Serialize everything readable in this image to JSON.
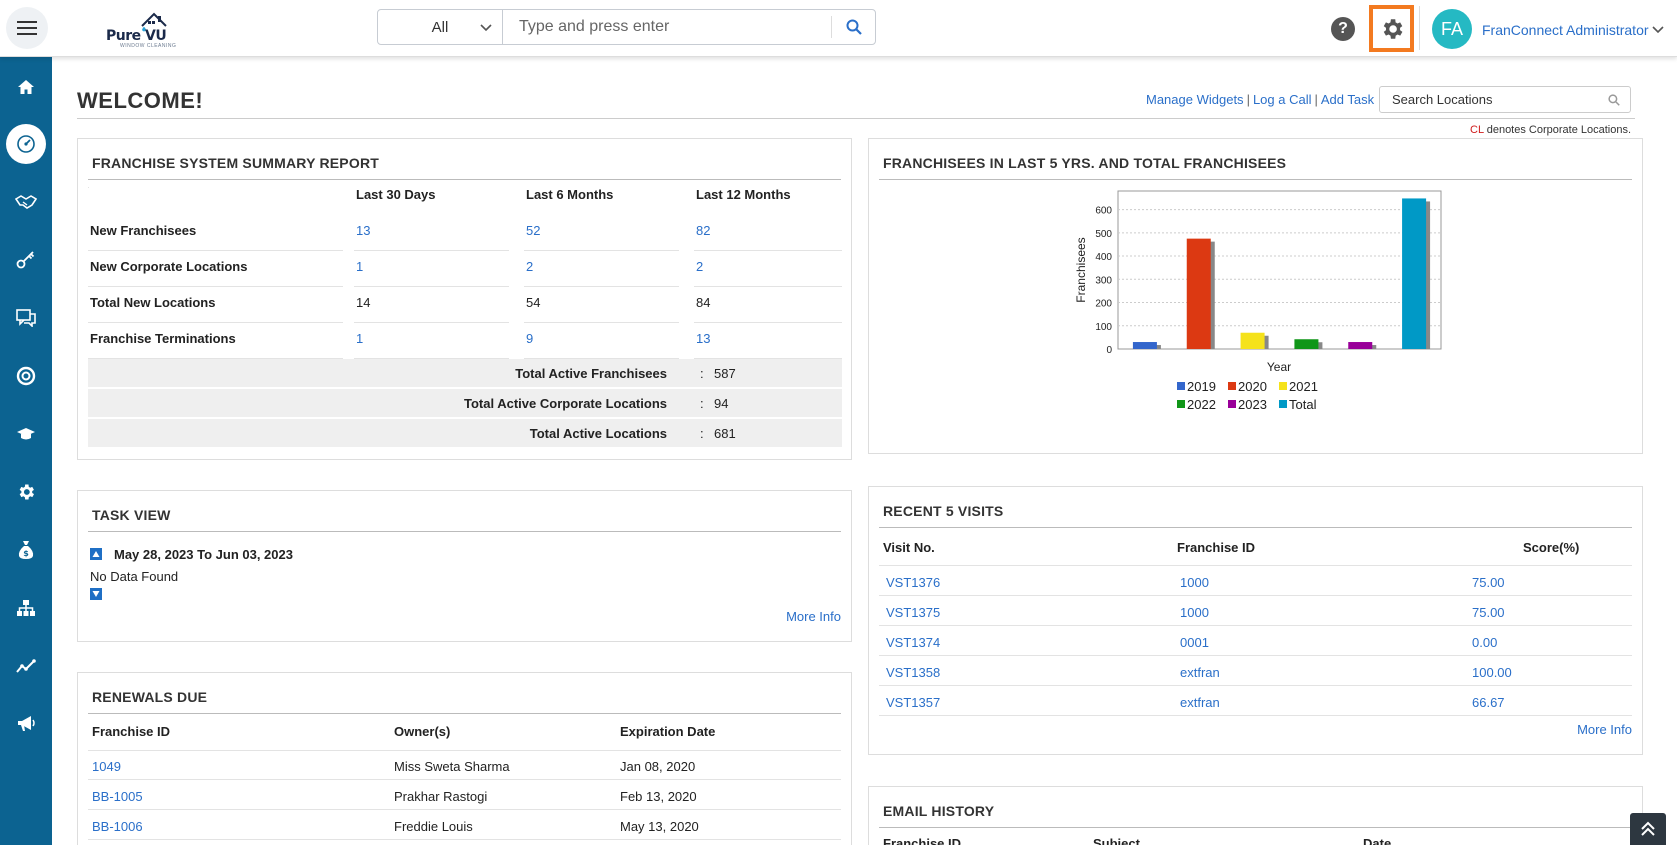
{
  "header": {
    "logo_text": "Pure VU",
    "logo_tagline": "WINDOW CLEANING",
    "search_category": "All",
    "search_placeholder": "Type and press enter",
    "user_initials": "FA",
    "user_name": "FranConnect Administrator"
  },
  "sidebar": {
    "items": [
      {
        "icon": "home-icon"
      },
      {
        "icon": "dashboard-icon",
        "active": true
      },
      {
        "icon": "handshake-icon"
      },
      {
        "icon": "key-icon"
      },
      {
        "icon": "chat-icon"
      },
      {
        "icon": "lifebuoy-icon"
      },
      {
        "icon": "graduation-cap-icon"
      },
      {
        "icon": "gear-icon"
      },
      {
        "icon": "money-bag-icon"
      },
      {
        "icon": "hierarchy-icon"
      },
      {
        "icon": "trend-line-icon"
      },
      {
        "icon": "megaphone-icon"
      }
    ]
  },
  "page": {
    "title": "WELCOME!",
    "manage_widgets": "Manage Widgets",
    "log_call": "Log a Call",
    "add_task": "Add Task",
    "search_locations_placeholder": "Search Locations",
    "cl_prefix": "CL",
    "cl_suffix": " denotes Corporate Locations."
  },
  "summary": {
    "title": "FRANCHISE SYSTEM SUMMARY REPORT",
    "columns": [
      "Last 30 Days",
      "Last 6 Months",
      "Last 12 Months"
    ],
    "rows": [
      {
        "label": "New Franchisees",
        "values": [
          "13",
          "52",
          "82"
        ],
        "links": true
      },
      {
        "label": "New Corporate Locations",
        "values": [
          "1",
          "2",
          "2"
        ],
        "links": true
      },
      {
        "label": "Total New Locations",
        "values": [
          "14",
          "54",
          "84"
        ],
        "links": false
      },
      {
        "label": "Franchise Terminations",
        "values": [
          "1",
          "9",
          "13"
        ],
        "links": true
      }
    ],
    "totals": [
      {
        "label": "Total Active Franchisees",
        "value": "587"
      },
      {
        "label": "Total Active Corporate Locations",
        "value": "94"
      },
      {
        "label": "Total Active Locations",
        "value": "681"
      }
    ]
  },
  "chart_panel": {
    "title": "FRANCHISEES IN LAST 5 YRS. AND TOTAL FRANCHISEES"
  },
  "chart_data": {
    "type": "bar",
    "xlabel": "Year",
    "ylabel": "Franchisees",
    "ylim": [
      0,
      680
    ],
    "yticks": [
      0,
      100,
      200,
      300,
      400,
      500,
      600
    ],
    "grid": true,
    "legend": "bottom",
    "series": [
      {
        "name": "2019",
        "value": 30,
        "color": "#3366cc"
      },
      {
        "name": "2020",
        "value": 475,
        "color": "#dc3912"
      },
      {
        "name": "2021",
        "value": 70,
        "color": "#f5e21b"
      },
      {
        "name": "2022",
        "value": 42,
        "color": "#109618"
      },
      {
        "name": "2023",
        "value": 30,
        "color": "#990099"
      },
      {
        "name": "Total",
        "value": 648,
        "color": "#0099c6"
      }
    ]
  },
  "task_view": {
    "title": "TASK VIEW",
    "range": "May 28, 2023 To Jun 03, 2023",
    "empty": "No Data Found",
    "more": "More Info"
  },
  "visits": {
    "title": "RECENT 5 VISITS",
    "columns": [
      "Visit No.",
      "Franchise ID",
      "Score(%)"
    ],
    "rows": [
      [
        "VST1376",
        "1000",
        "75.00"
      ],
      [
        "VST1375",
        "1000",
        "75.00"
      ],
      [
        "VST1374",
        "0001",
        "0.00"
      ],
      [
        "VST1358",
        "extfran",
        "100.00"
      ],
      [
        "VST1357",
        "extfran",
        "66.67"
      ]
    ],
    "more": "More Info"
  },
  "renewals": {
    "title": "RENEWALS DUE",
    "columns": [
      "Franchise ID",
      "Owner(s)",
      "Expiration Date"
    ],
    "rows": [
      [
        "1049",
        "Miss Sweta Sharma",
        "Jan 08, 2020"
      ],
      [
        "BB-1005",
        "Prakhar Rastogi",
        "Feb 13, 2020"
      ],
      [
        "BB-1006",
        "Freddie Louis",
        "May 13, 2020"
      ]
    ]
  },
  "email_history": {
    "title": "EMAIL HISTORY",
    "columns": [
      "Franchise ID",
      "Subject",
      "Date"
    ]
  }
}
